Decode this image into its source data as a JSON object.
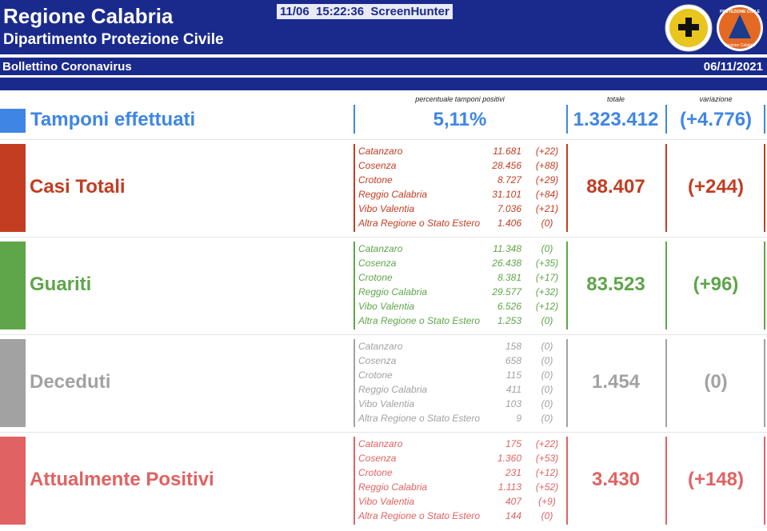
{
  "header": {
    "title": "Regione Calabria",
    "subtitle": "Dipartimento Protezione Civile",
    "overlay": "11/06  15:22:36  ScreenHunter",
    "logo_text": [
      "PROTEZIONE CIVILE",
      "Regione Calabria"
    ]
  },
  "bulletin": {
    "title": "Bollettino Coronavirus",
    "date": "06/11/2021"
  },
  "tamponi": {
    "label": "Tamponi effettuati",
    "color": "#3f86e4",
    "column_headers": [
      "percentuale tamponi positivi",
      "totale",
      "variazione"
    ],
    "percent": "5,11%",
    "total": "1.323.412",
    "change": "(+4.776)"
  },
  "sections": [
    {
      "label": "Casi Totali",
      "color": "#c23d22",
      "total": "88.407",
      "change": "(+244)",
      "provinces": [
        {
          "name": "Catanzaro",
          "count": "11.681",
          "change": "(+22)"
        },
        {
          "name": "Cosenza",
          "count": "28.456",
          "change": "(+88)"
        },
        {
          "name": "Crotone",
          "count": "8.727",
          "change": "(+29)"
        },
        {
          "name": "Reggio Calabria",
          "count": "31.101",
          "change": "(+84)"
        },
        {
          "name": "Vibo Valentia",
          "count": "7.036",
          "change": "(+21)"
        },
        {
          "name": "Altra Regione o Stato Estero",
          "count": "1.406",
          "change": "(0)"
        }
      ]
    },
    {
      "label": "Guariti",
      "color": "#5fa54a",
      "total": "83.523",
      "change": "(+96)",
      "provinces": [
        {
          "name": "Catanzaro",
          "count": "11.348",
          "change": "(0)"
        },
        {
          "name": "Cosenza",
          "count": "26.438",
          "change": "(+35)"
        },
        {
          "name": "Crotone",
          "count": "8.381",
          "change": "(+17)"
        },
        {
          "name": "Reggio Calabria",
          "count": "29.577",
          "change": "(+32)"
        },
        {
          "name": "Vibo Valentia",
          "count": "6.526",
          "change": "(+12)"
        },
        {
          "name": "Altra Regione o Stato Estero",
          "count": "1.253",
          "change": "(0)"
        }
      ]
    },
    {
      "label": "Deceduti",
      "color": "#a2a2a2",
      "total": "1.454",
      "change": "(0)",
      "provinces": [
        {
          "name": "Catanzaro",
          "count": "158",
          "change": "(0)"
        },
        {
          "name": "Cosenza",
          "count": "658",
          "change": "(0)"
        },
        {
          "name": "Crotone",
          "count": "115",
          "change": "(0)"
        },
        {
          "name": "Reggio Calabria",
          "count": "411",
          "change": "(0)"
        },
        {
          "name": "Vibo Valentia",
          "count": "103",
          "change": "(0)"
        },
        {
          "name": "Altra Regione o Stato Estero",
          "count": "9",
          "change": "(0)"
        }
      ]
    },
    {
      "label": "Attualmente Positivi",
      "color": "#e06262",
      "total": "3.430",
      "change": "(+148)",
      "provinces": [
        {
          "name": "Catanzaro",
          "count": "175",
          "change": "(+22)"
        },
        {
          "name": "Cosenza",
          "count": "1.360",
          "change": "(+53)"
        },
        {
          "name": "Crotone",
          "count": "231",
          "change": "(+12)"
        },
        {
          "name": "Reggio Calabria",
          "count": "1.113",
          "change": "(+52)"
        },
        {
          "name": "Vibo Valentia",
          "count": "407",
          "change": "(+9)"
        },
        {
          "name": "Altra Regione o Stato Estero",
          "count": "144",
          "change": "(0)"
        }
      ]
    }
  ]
}
